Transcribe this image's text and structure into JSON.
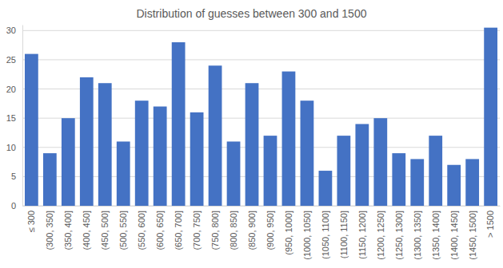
{
  "chart_data": {
    "type": "bar",
    "title": "Distribution of guesses between 300 and 1500",
    "categories": [
      "≤ 300",
      "(300, 350]",
      "(350, 400]",
      "(400, 450]",
      "(450, 500]",
      "(500, 550]",
      "(550, 600]",
      "(600, 650]",
      "(650, 700]",
      "(700, 750]",
      "(750, 800]",
      "(800, 850]",
      "(850, 900]",
      "(900, 950]",
      "(950, 1000]",
      "(1000, 1050]",
      "(1050, 1100]",
      "(1100, 1150]",
      "(1150, 1200]",
      "(1200, 1250]",
      "(1250, 1300]",
      "(1300, 1350]",
      "(1350, 1400]",
      "(1400, 1450]",
      "(1450, 1500]",
      "> 1500"
    ],
    "values": [
      26,
      9,
      15,
      22,
      21,
      11,
      18,
      17,
      28,
      16,
      24,
      11,
      21,
      12,
      23,
      18,
      6,
      12,
      14,
      15,
      9,
      8,
      12,
      7,
      8,
      30.5
    ],
    "color": "#4472c4",
    "ylim": [
      0,
      31
    ],
    "yticks": [
      0,
      5,
      10,
      15,
      20,
      25,
      30
    ],
    "grid": true
  }
}
